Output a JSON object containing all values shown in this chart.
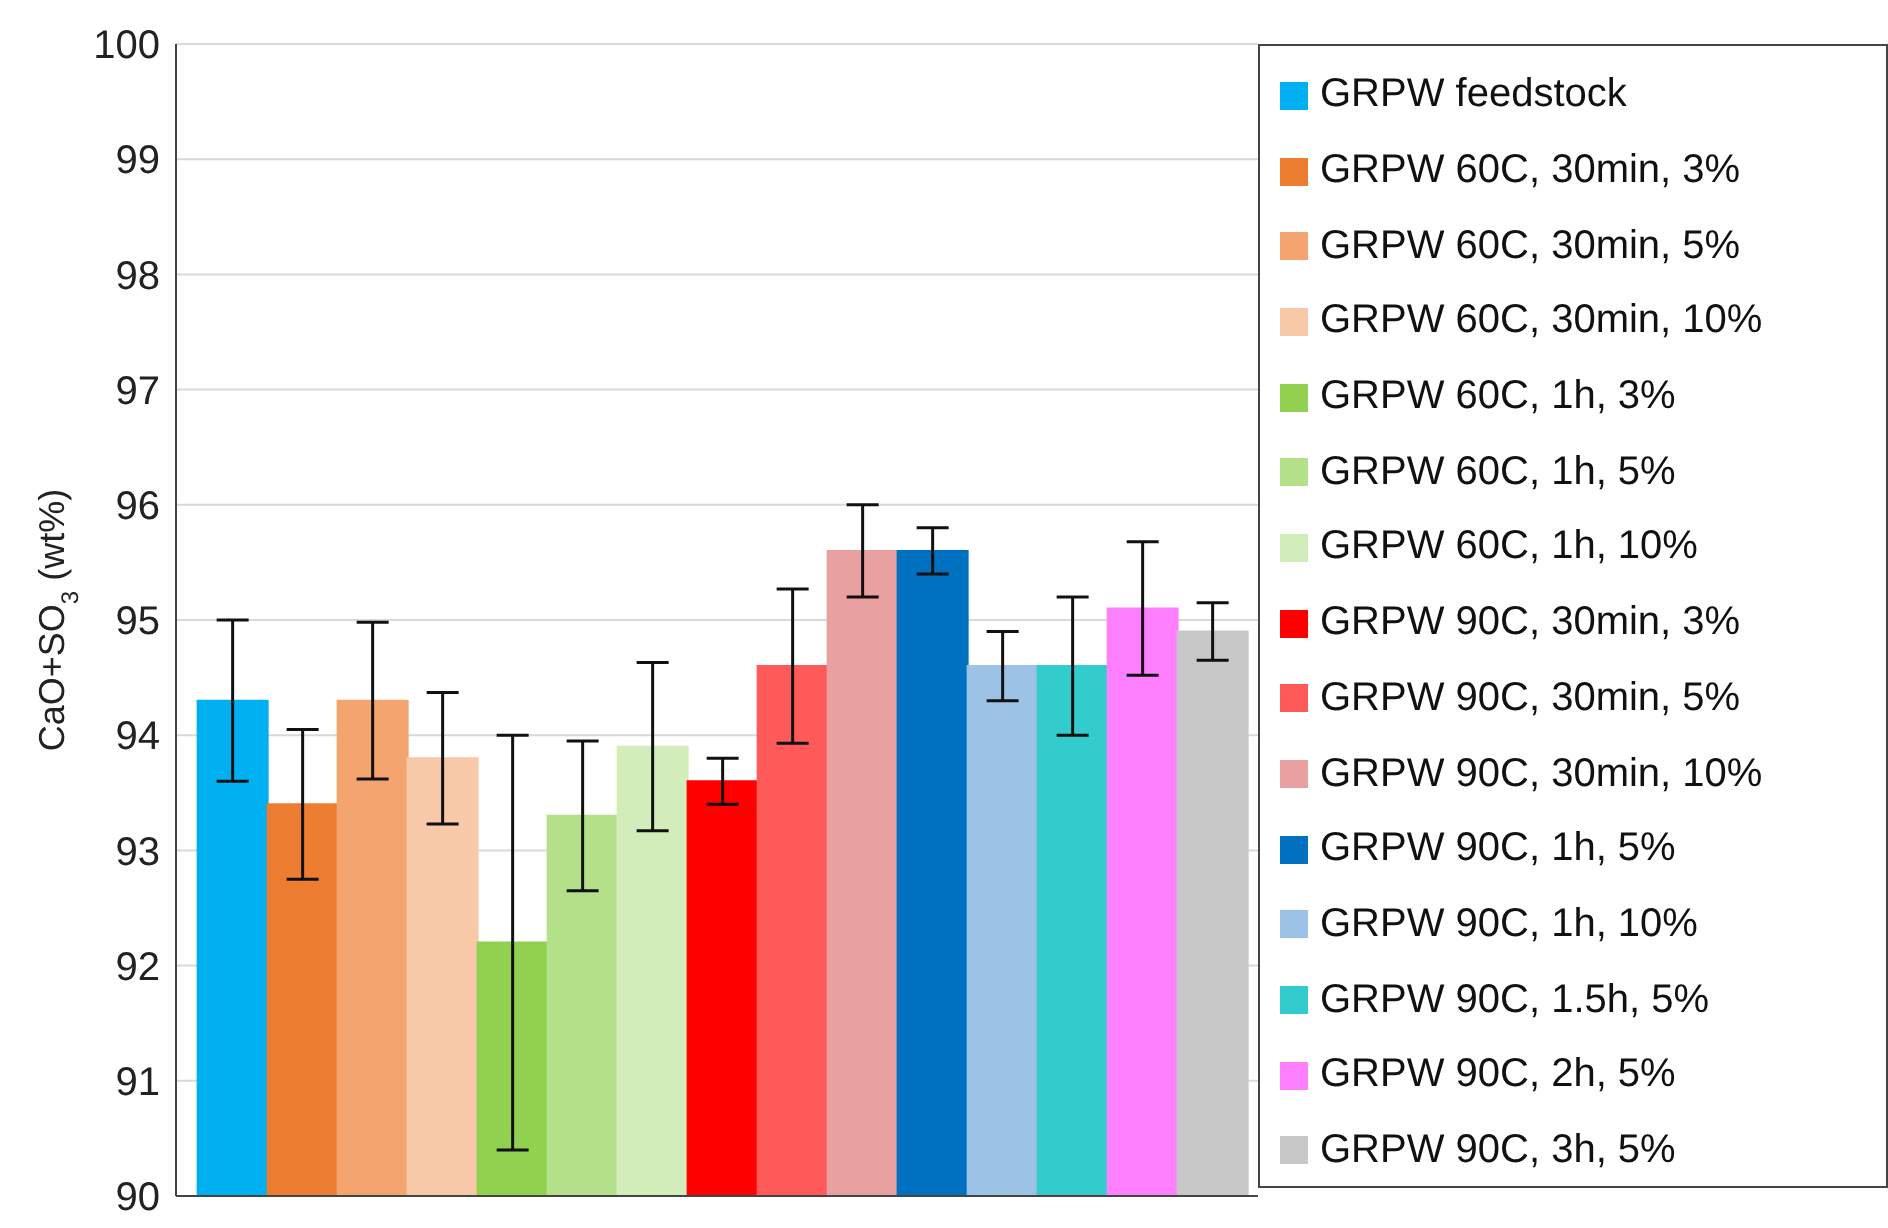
{
  "chart_data": {
    "type": "bar",
    "ylabel": "CaO+SO$_{3}$ (wt%)",
    "categories": [
      null
    ],
    "ylim": [
      90,
      100
    ],
    "yticks": [
      90,
      91,
      92,
      93,
      94,
      95,
      96,
      97,
      98,
      99,
      100
    ],
    "grid": "y",
    "legend": "right",
    "series": [
      {
        "name": "GRPW feedstock",
        "color": "#00b0f0",
        "values": [
          94.3
        ],
        "errors": [
          0.7
        ]
      },
      {
        "name": "GRPW 60C, 30min, 3%",
        "color": "#ed7d31",
        "values": [
          93.4
        ],
        "errors": [
          0.65
        ]
      },
      {
        "name": "GRPW 60C, 30min, 5%",
        "color": "#f4a46e",
        "values": [
          94.3
        ],
        "errors": [
          0.68
        ]
      },
      {
        "name": "GRPW 60C, 30min, 10%",
        "color": "#f8c9a8",
        "values": [
          93.8
        ],
        "errors": [
          0.57
        ]
      },
      {
        "name": "GRPW 60C, 1h, 3%",
        "color": "#92d050",
        "values": [
          92.2
        ],
        "errors": [
          1.8
        ]
      },
      {
        "name": "GRPW 60C, 1h, 5%",
        "color": "#b5e08a",
        "values": [
          93.3
        ],
        "errors": [
          0.65
        ]
      },
      {
        "name": "GRPW 60C, 1h, 10%",
        "color": "#d3edba",
        "values": [
          93.9
        ],
        "errors": [
          0.73
        ]
      },
      {
        "name": "GRPW 90C, 30min, 3%",
        "color": "#ff0000",
        "values": [
          93.6
        ],
        "errors": [
          0.2
        ]
      },
      {
        "name": "GRPW 90C, 30min, 5%",
        "color": "#ff5a5a",
        "values": [
          94.6
        ],
        "errors": [
          0.67
        ]
      },
      {
        "name": "GRPW 90C, 30min, 10%",
        "color": "#e8a0a0",
        "values": [
          95.6
        ],
        "errors": [
          0.4
        ]
      },
      {
        "name": "GRPW 90C, 1h, 5%",
        "color": "#0070c0",
        "values": [
          95.6
        ],
        "errors": [
          0.2
        ]
      },
      {
        "name": "GRPW 90C, 1h, 10%",
        "color": "#9cc3e6",
        "values": [
          94.6
        ],
        "errors": [
          0.3
        ]
      },
      {
        "name": "GRPW 90C, 1.5h, 5%",
        "color": "#33cccc",
        "values": [
          94.6
        ],
        "errors": [
          0.6
        ]
      },
      {
        "name": "GRPW 90C, 2h, 5%",
        "color": "#ff80ff",
        "values": [
          95.1
        ],
        "errors": [
          0.58
        ]
      },
      {
        "name": "GRPW 90C, 3h, 5%",
        "color": "#c8c8c8",
        "values": [
          94.9
        ],
        "errors": [
          0.25
        ]
      }
    ]
  }
}
